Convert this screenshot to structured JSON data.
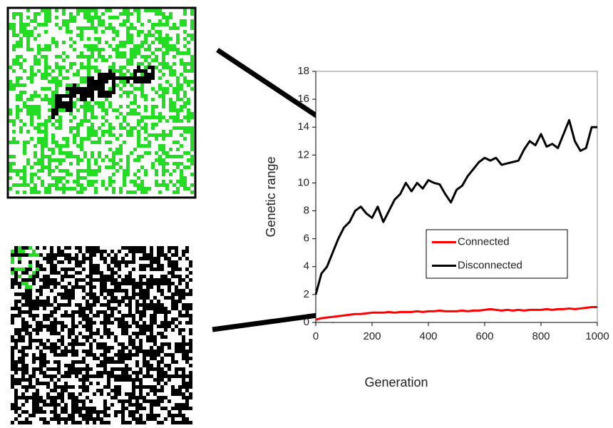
{
  "chart_data": {
    "type": "line",
    "x_label": "Generation",
    "y_label": "Genetic range",
    "xlim": [
      0,
      1000
    ],
    "xticks": [
      0,
      200,
      400,
      600,
      800,
      1000
    ],
    "ylim": [
      0,
      18
    ],
    "yticks": [
      0,
      2,
      4,
      6,
      8,
      10,
      12,
      14,
      16,
      18
    ],
    "legend": "right",
    "x": [
      0,
      20,
      40,
      60,
      80,
      100,
      120,
      140,
      160,
      180,
      200,
      220,
      240,
      260,
      280,
      300,
      320,
      340,
      360,
      380,
      400,
      420,
      440,
      460,
      480,
      500,
      520,
      540,
      560,
      580,
      600,
      620,
      640,
      660,
      680,
      700,
      720,
      740,
      760,
      780,
      800,
      820,
      840,
      860,
      880,
      900,
      920,
      940,
      960,
      980,
      1000
    ],
    "series": [
      {
        "name": "Connected",
        "color": "#ff0000",
        "values": [
          0.2,
          0.3,
          0.35,
          0.4,
          0.45,
          0.5,
          0.55,
          0.6,
          0.6,
          0.65,
          0.7,
          0.7,
          0.7,
          0.75,
          0.7,
          0.75,
          0.75,
          0.75,
          0.8,
          0.75,
          0.8,
          0.8,
          0.85,
          0.8,
          0.8,
          0.8,
          0.85,
          0.8,
          0.85,
          0.85,
          0.9,
          0.95,
          0.9,
          0.85,
          0.9,
          0.85,
          0.9,
          0.85,
          0.9,
          0.9,
          0.9,
          0.95,
          0.9,
          0.95,
          0.95,
          1.0,
          0.95,
          1.0,
          1.05,
          1.1,
          1.1
        ]
      },
      {
        "name": "Disconnected",
        "color": "#000000",
        "values": [
          2,
          3.5,
          4,
          5,
          6,
          6.8,
          7.2,
          8,
          8.3,
          7.8,
          7.5,
          8.3,
          7.2,
          8,
          8.8,
          9.2,
          10,
          9.4,
          10,
          9.6,
          10.2,
          10,
          9.9,
          9.2,
          8.6,
          9.5,
          9.8,
          10.5,
          11,
          11.5,
          11.8,
          11.6,
          11.8,
          11.3,
          11.4,
          11.5,
          11.6,
          12.4,
          13,
          12.7,
          13.5,
          12.6,
          12.8,
          12.5,
          13.5,
          14.5,
          13,
          12.3,
          12.5,
          14,
          14
        ]
      }
    ]
  }
}
